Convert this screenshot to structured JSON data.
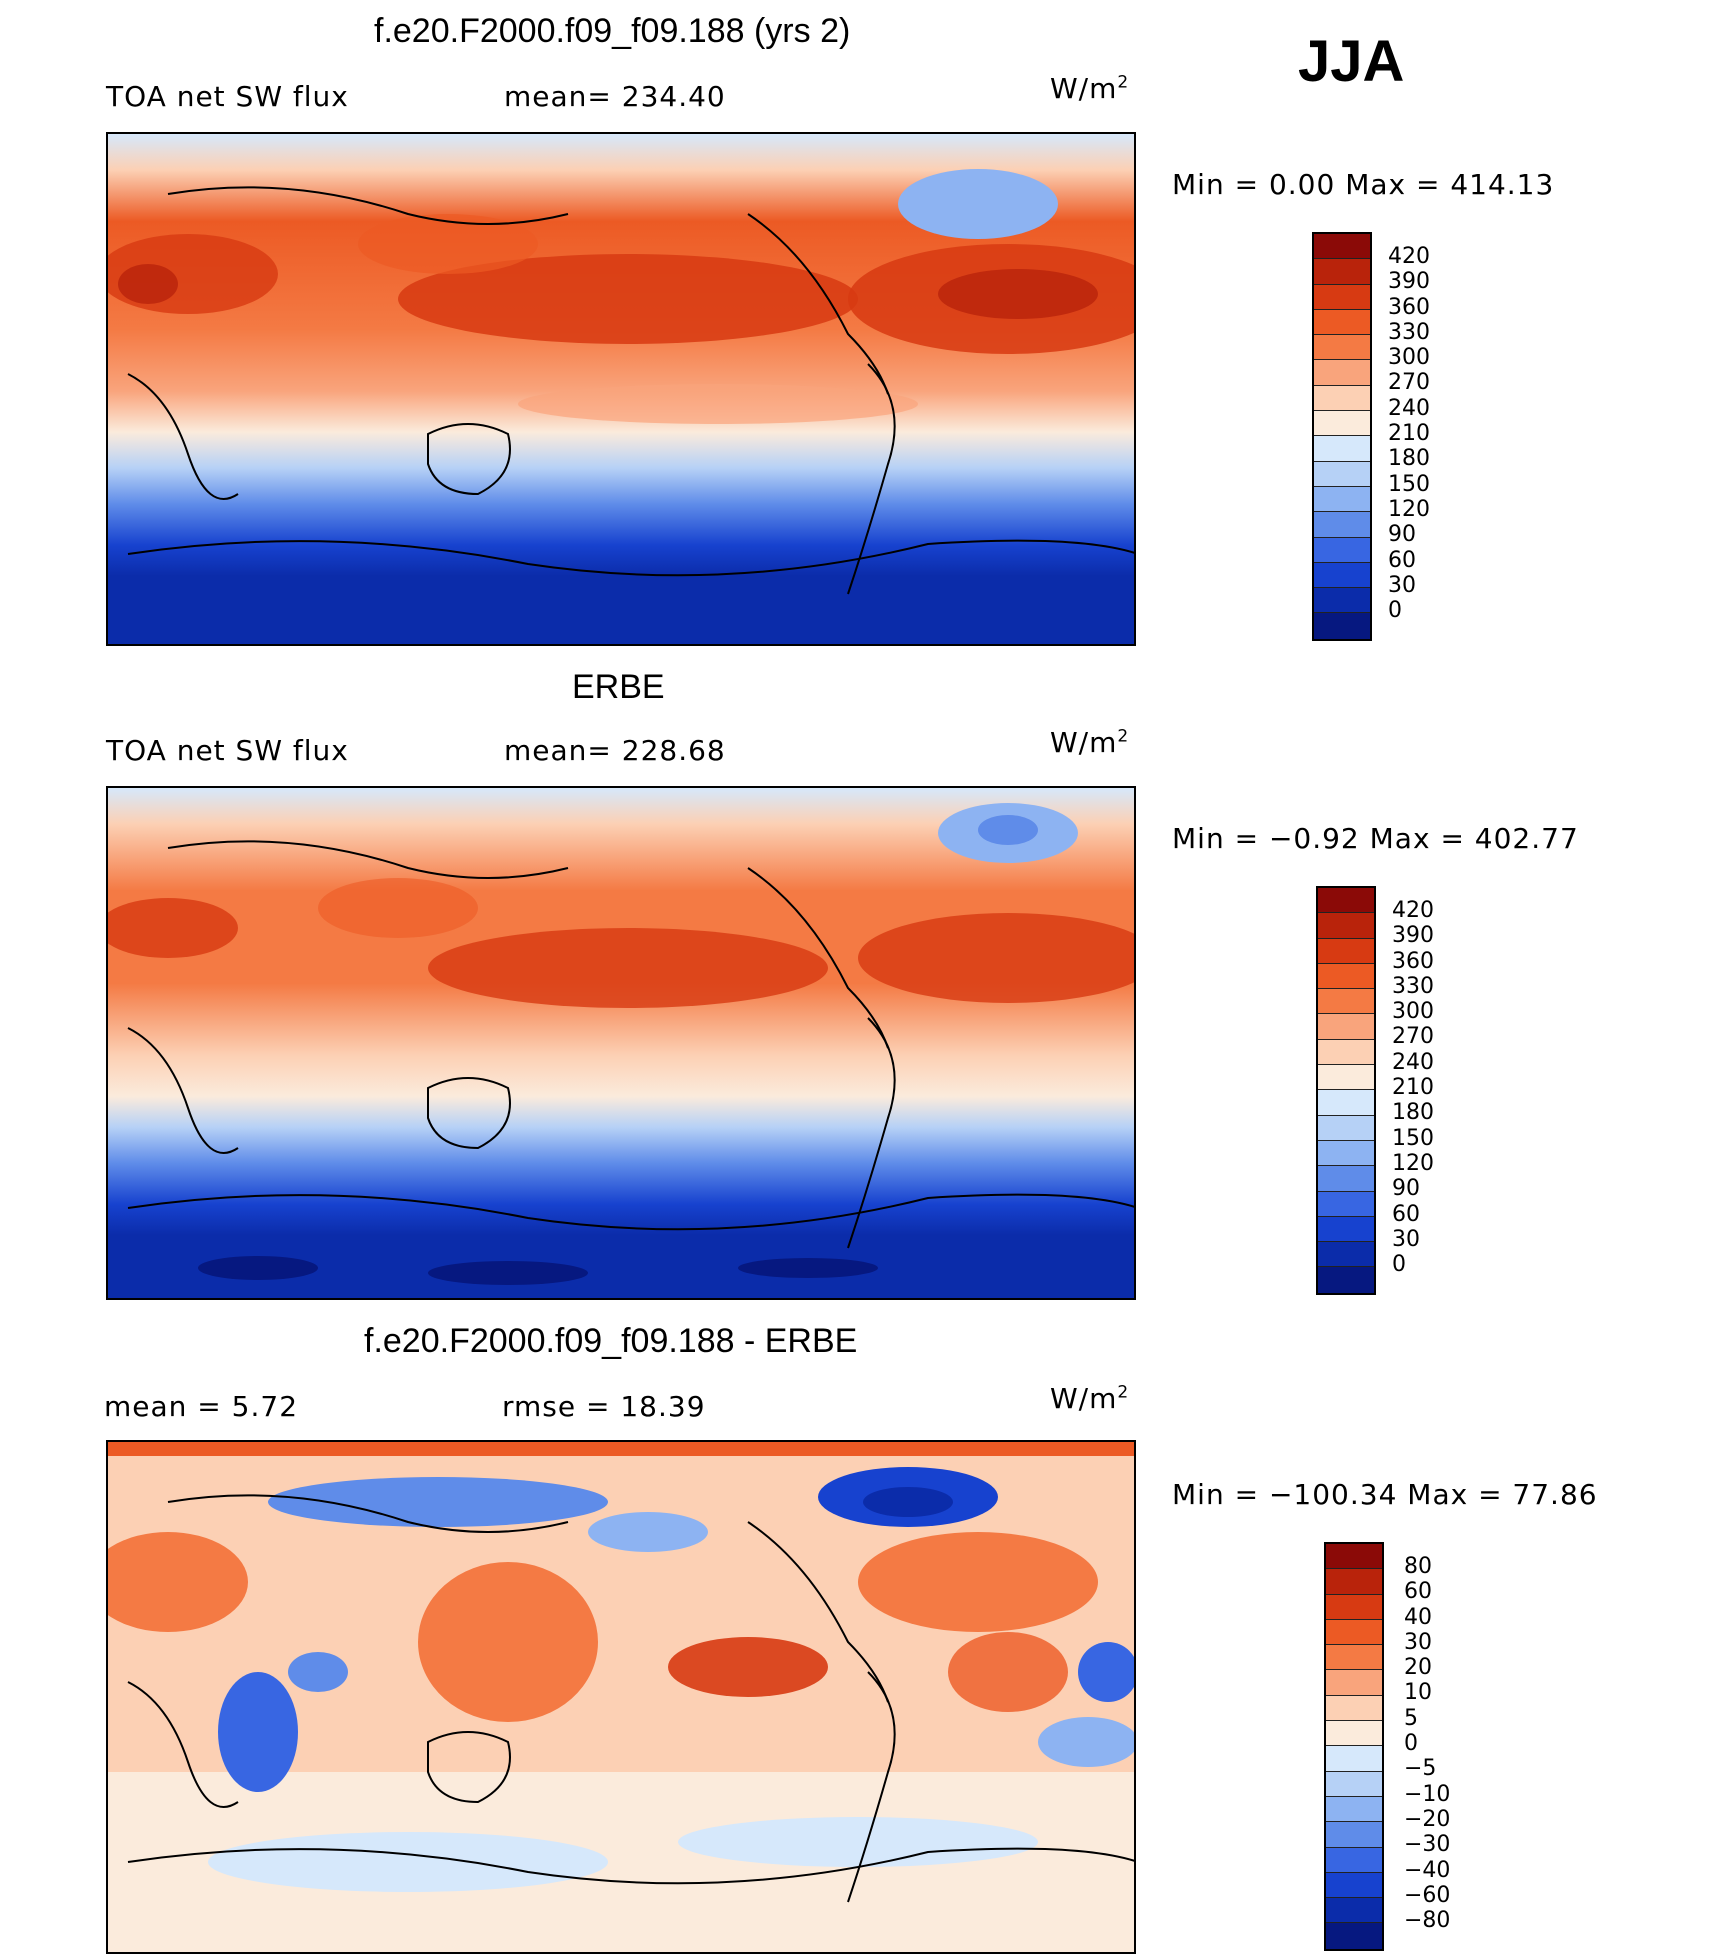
{
  "season_label": "JJA",
  "panels": [
    {
      "title": "f.e20.F2000.f09_f09.188 (yrs 2)",
      "left_label": "TOA net SW flux",
      "mid_label": "mean= 234.40",
      "units": "W/m",
      "units_sup": "2",
      "minmax": "Min =    0.00  Max  =  414.13",
      "colorbar_labels": [
        "420",
        "390",
        "360",
        "330",
        "300",
        "270",
        "240",
        "210",
        "180",
        "150",
        "120",
        "90",
        "60",
        "30",
        "0"
      ],
      "colorbar_colors": [
        "#8b0a07",
        "#b9230b",
        "#d73a12",
        "#ec5a24",
        "#f47a44",
        "#f9a47c",
        "#fcd0b4",
        "#fbebdc",
        "#d6e8fb",
        "#b6d1f6",
        "#8db3f2",
        "#5f8ce9",
        "#3866e2",
        "#1742cf",
        "#0b2caa",
        "#061880"
      ]
    },
    {
      "title": "ERBE",
      "left_label": "TOA net SW flux",
      "mid_label": "mean= 228.68",
      "units": "W/m",
      "units_sup": "2",
      "minmax": "Min  =   −0.92  Max  =  402.77",
      "colorbar_labels": [
        "420",
        "390",
        "360",
        "330",
        "300",
        "270",
        "240",
        "210",
        "180",
        "150",
        "120",
        "90",
        "60",
        "30",
        "0"
      ],
      "colorbar_colors": [
        "#8b0a07",
        "#b9230b",
        "#d73a12",
        "#ec5a24",
        "#f47a44",
        "#f9a47c",
        "#fcd0b4",
        "#fbebdc",
        "#d6e8fb",
        "#b6d1f6",
        "#8db3f2",
        "#5f8ce9",
        "#3866e2",
        "#1742cf",
        "#0b2caa",
        "#061880"
      ]
    },
    {
      "title": "f.e20.F2000.f09_f09.188 - ERBE",
      "left_label": "mean  =     5.72",
      "mid_label": "rmse  =    18.39",
      "units": "W/m",
      "units_sup": "2",
      "minmax": "Min  = −100.34  Max  =    77.86",
      "colorbar_labels": [
        "80",
        "60",
        "40",
        "30",
        "20",
        "10",
        "5",
        "0",
        "−5",
        "−10",
        "−20",
        "−30",
        "−40",
        "−60",
        "−80"
      ],
      "colorbar_colors": [
        "#8b0a07",
        "#b9230b",
        "#d73a12",
        "#ec5a24",
        "#f47a44",
        "#f9a47c",
        "#fcd0b4",
        "#fbebdc",
        "#d6e8fb",
        "#b6d1f6",
        "#8db3f2",
        "#5f8ce9",
        "#3866e2",
        "#1742cf",
        "#0b2caa",
        "#061880"
      ]
    }
  ],
  "chart_data": {
    "type": "heatmap",
    "projection": "cylindrical-equidistant",
    "panels": [
      {
        "name": "f.e20.F2000.f09_f09.188 (yrs 2)",
        "variable": "TOA net SW flux",
        "units": "W/m2",
        "mean": 234.4,
        "min": 0.0,
        "max": 414.13,
        "contour_levels": [
          0,
          30,
          60,
          90,
          120,
          150,
          180,
          210,
          240,
          270,
          300,
          330,
          360,
          390,
          420
        ]
      },
      {
        "name": "ERBE",
        "variable": "TOA net SW flux",
        "units": "W/m2",
        "mean": 228.68,
        "min": -0.92,
        "max": 402.77,
        "contour_levels": [
          0,
          30,
          60,
          90,
          120,
          150,
          180,
          210,
          240,
          270,
          300,
          330,
          360,
          390,
          420
        ]
      },
      {
        "name": "f.e20.F2000.f09_f09.188 - ERBE",
        "units": "W/m2",
        "mean": 5.72,
        "rmse": 18.39,
        "min": -100.34,
        "max": 77.86,
        "contour_levels": [
          -80,
          -60,
          -40,
          -30,
          -20,
          -10,
          -5,
          0,
          5,
          10,
          20,
          30,
          40,
          60,
          80
        ]
      }
    ]
  }
}
